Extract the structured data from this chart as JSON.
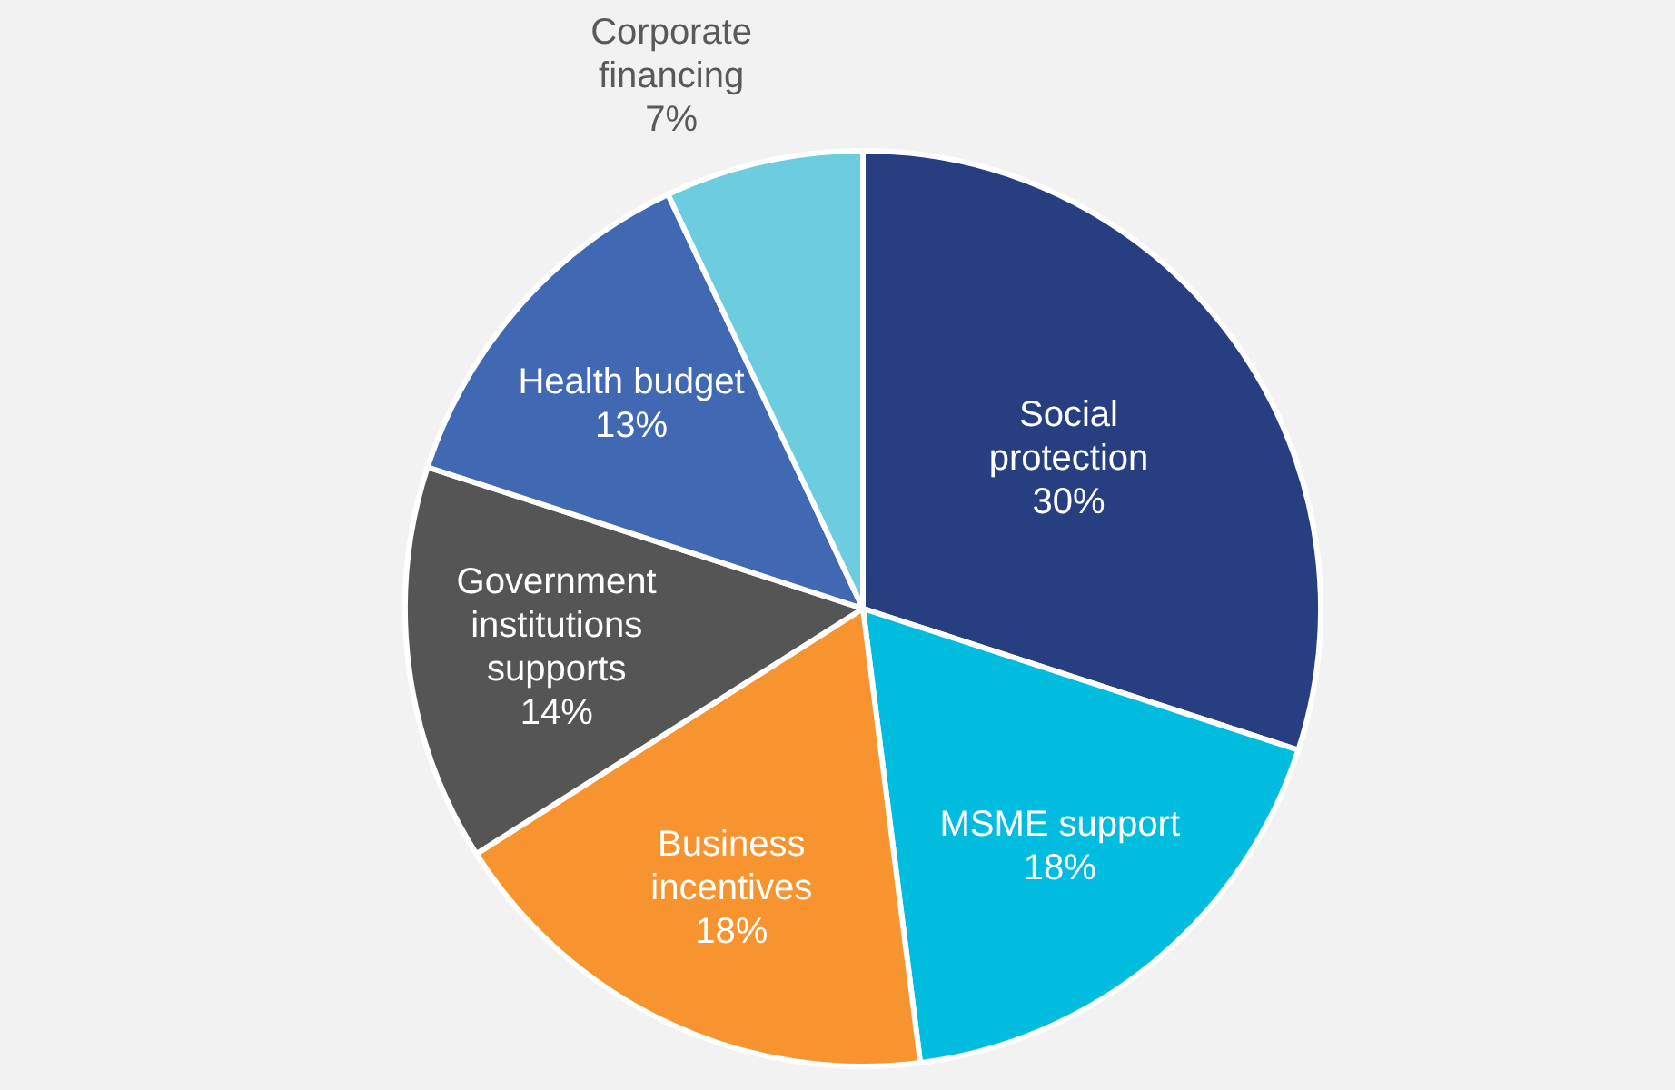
{
  "chart_data": {
    "type": "pie",
    "categories": [
      "Social\nprotection",
      "MSME support",
      "Business\nincentives",
      "Government\ninstitutions\nsupports",
      "Health budget",
      "Corporate\nfinancing"
    ],
    "values": [
      30,
      18,
      18,
      14,
      13,
      7
    ],
    "colors": [
      "#273f80",
      "#00bde0",
      "#f7942f",
      "#555555",
      "#4168b3",
      "#6dcde0"
    ],
    "value_labels": [
      "30%",
      "18%",
      "18%",
      "14%",
      "13%",
      "7%"
    ]
  }
}
